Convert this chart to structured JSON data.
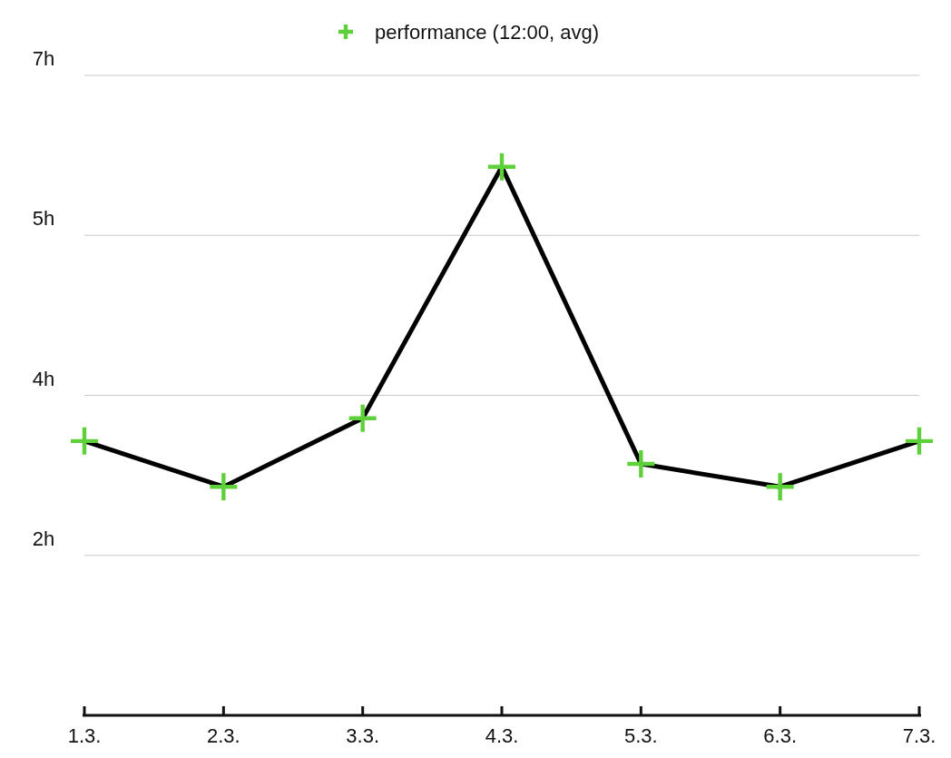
{
  "chart_data": {
    "type": "line",
    "categories": [
      "1.3.",
      "2.3.",
      "3.3.",
      "4.3.",
      "5.3.",
      "6.3.",
      "7.3."
    ],
    "series": [
      {
        "name": "performance (12:00, avg)",
        "color": "#5ed13a",
        "values": [
          3.0,
          2.5,
          3.25,
          6.0,
          2.75,
          2.5,
          3.0
        ]
      }
    ],
    "ylim": [
      0,
      7
    ],
    "yticks": [
      {
        "value": 1.75,
        "label": "2h"
      },
      {
        "value": 3.5,
        "label": "4h"
      },
      {
        "value": 5.25,
        "label": "5h"
      },
      {
        "value": 7,
        "label": "7h"
      }
    ],
    "grid": "y",
    "legend": "top",
    "marker": "cross",
    "line_style": "solid"
  }
}
